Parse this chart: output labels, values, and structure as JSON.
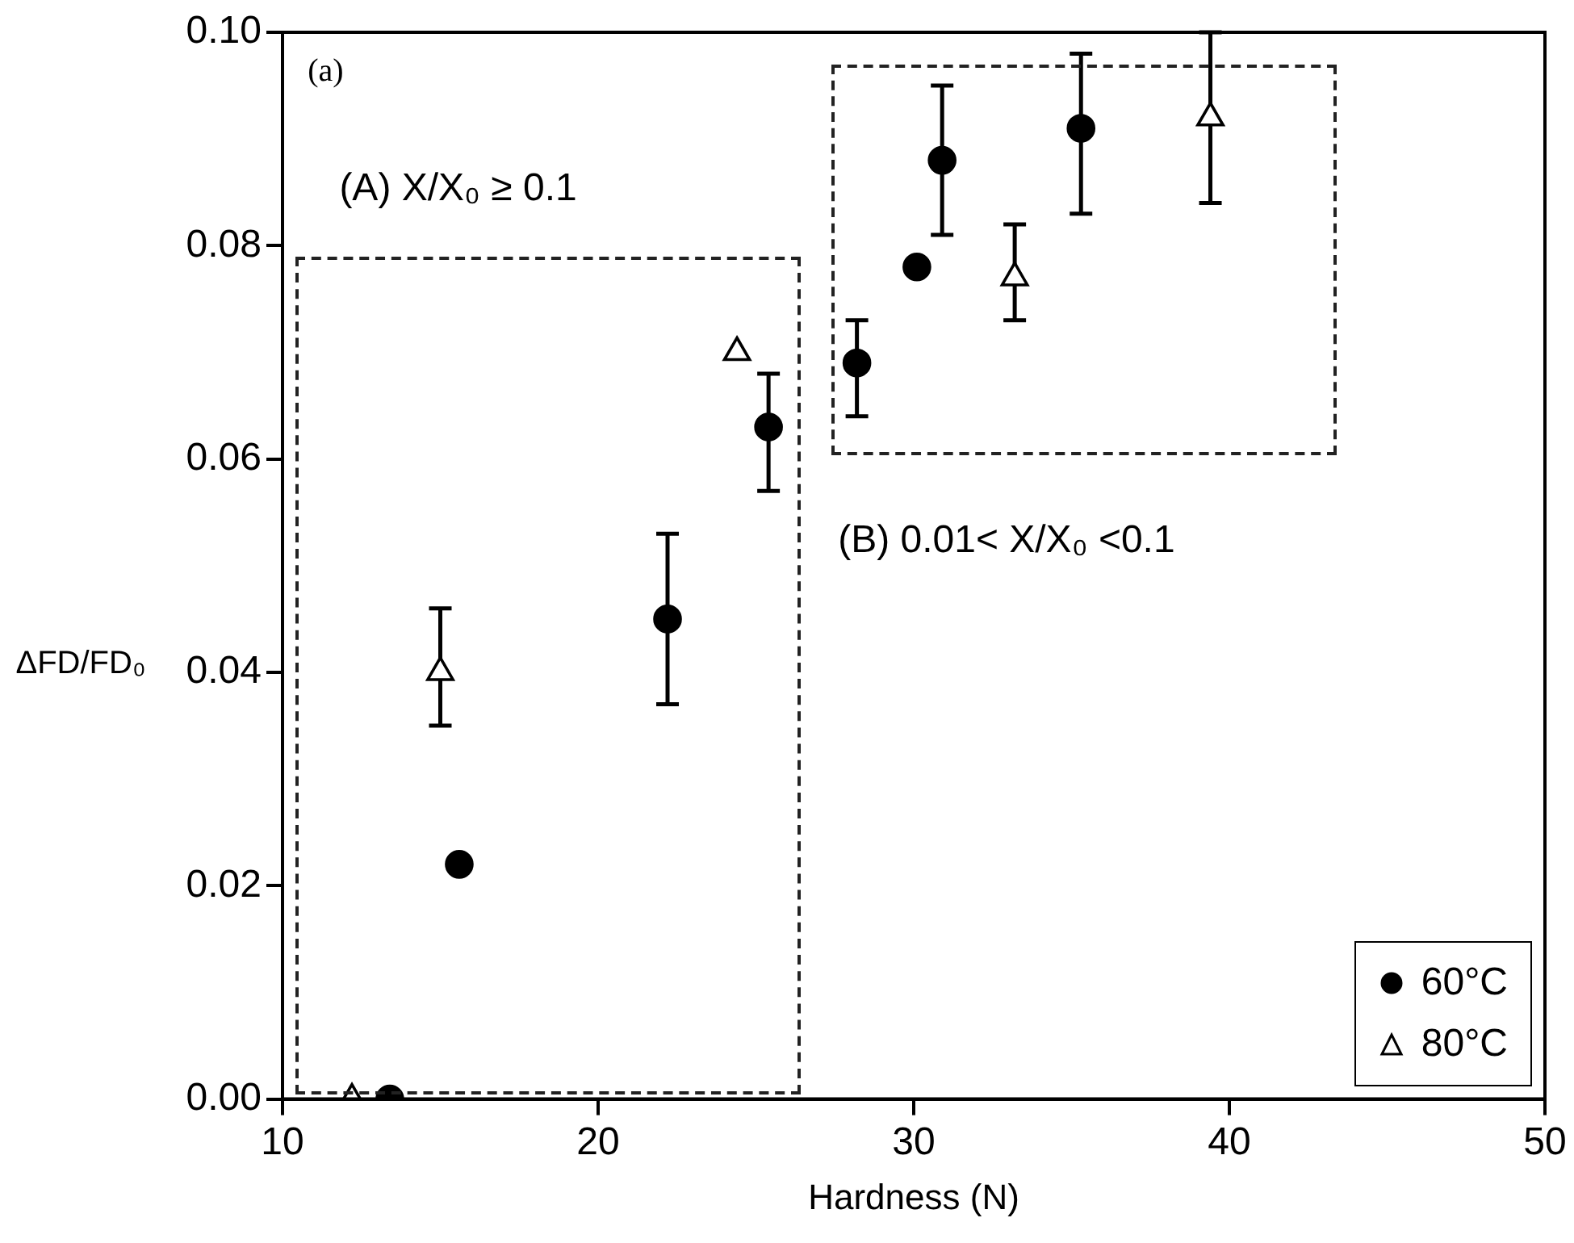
{
  "chart_data": {
    "type": "scatter",
    "xlabel": "Hardness (N)",
    "ylabel": "ΔFD/FD₀",
    "xlim": [
      10,
      50
    ],
    "xticks": [
      10,
      20,
      30,
      40,
      50
    ],
    "ylim": [
      0,
      0.1
    ],
    "yticks": [
      {
        "value": 0,
        "label": "0.00"
      },
      {
        "value": 0.02,
        "label": "0.02"
      },
      {
        "value": 0.04,
        "label": "0.04"
      },
      {
        "value": 0.06,
        "label": "0.06"
      },
      {
        "value": 0.08,
        "label": "0.08"
      },
      {
        "value": 0.1,
        "label": "0.10"
      }
    ],
    "grid": false,
    "legend": "bottom right",
    "annotations": [
      "(a)",
      "(A) X/X₀ ≥ 0.1",
      "(B) 0.01< X/X₀ <0.1"
    ],
    "series": [
      {
        "name": "60°C",
        "color": "#000000",
        "marker": "circle",
        "x": [
          13.4,
          15.6,
          22.2,
          25.4,
          28.2,
          30.1,
          30.9,
          35.3
        ],
        "values": [
          0,
          0.022,
          0.045,
          0.063,
          0.069,
          0.078,
          0.088,
          0.091
        ],
        "errors": [
          null,
          null,
          [
            0.037,
            0.053
          ],
          [
            0.057,
            0.068
          ],
          [
            0.064,
            0.073
          ],
          null,
          [
            0.081,
            0.095
          ],
          [
            0.083,
            0.098
          ]
        ]
      },
      {
        "name": "80°C",
        "color": "#000000",
        "marker": "triangle",
        "x": [
          12.2,
          15.0,
          24.4,
          33.2,
          39.4
        ],
        "values": [
          0,
          0.04,
          0.07,
          0.077,
          0.092
        ],
        "errors": [
          null,
          [
            0.035,
            0.046
          ],
          null,
          [
            0.073,
            0.082
          ],
          [
            0.084,
            0.1
          ]
        ]
      }
    ]
  }
}
